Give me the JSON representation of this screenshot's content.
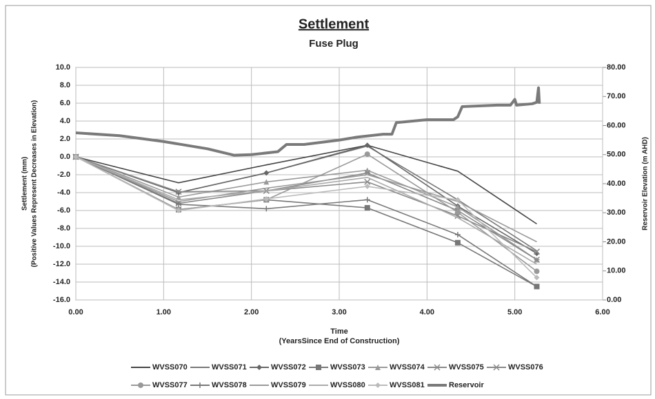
{
  "chart_data": {
    "type": "line",
    "title": "Settlement",
    "subtitle": "Fuse Plug",
    "xlabel": [
      "Time",
      "(YearsSince End of Construction)"
    ],
    "ylabel": [
      "Settlement (mm)",
      "(Positive Values Represent Decreases in Elevation)"
    ],
    "y2label": "Reservoir Elevation (m AHD)",
    "xlim": [
      0,
      6
    ],
    "xticks": [
      {
        "value": 0,
        "label": "0.00"
      },
      {
        "value": 1,
        "label": "1.00"
      },
      {
        "value": 2,
        "label": "2.00"
      },
      {
        "value": 3,
        "label": "3.00"
      },
      {
        "value": 4,
        "label": "4.00"
      },
      {
        "value": 5,
        "label": "5.00"
      },
      {
        "value": 6,
        "label": "6.00"
      }
    ],
    "ylim": [
      -16,
      10
    ],
    "yticks": [
      {
        "value": 10,
        "label": "10.0"
      },
      {
        "value": 8,
        "label": "8.0"
      },
      {
        "value": 6,
        "label": "6.0"
      },
      {
        "value": 4,
        "label": "4.0"
      },
      {
        "value": 2,
        "label": "2.0"
      },
      {
        "value": 0,
        "label": "0.0"
      },
      {
        "value": -2,
        "label": "-2.0"
      },
      {
        "value": -4,
        "label": "-4.0"
      },
      {
        "value": -6,
        "label": "-6.0"
      },
      {
        "value": -8,
        "label": "-8.0"
      },
      {
        "value": -10,
        "label": "-10.0"
      },
      {
        "value": -12,
        "label": "-12.0"
      },
      {
        "value": -14,
        "label": "-14.0"
      },
      {
        "value": -16,
        "label": "-16.0"
      }
    ],
    "y2lim": [
      0,
      80
    ],
    "y2ticks": [
      {
        "value": 80,
        "label": "80.00"
      },
      {
        "value": 70,
        "label": "70.00"
      },
      {
        "value": 60,
        "label": "60.00"
      },
      {
        "value": 50,
        "label": "50.00"
      },
      {
        "value": 40,
        "label": "40.00"
      },
      {
        "value": 30,
        "label": "30.00"
      },
      {
        "value": 20,
        "label": "20.00"
      },
      {
        "value": 10,
        "label": "10.00"
      },
      {
        "value": 0,
        "label": "0.00"
      }
    ],
    "grid": true,
    "x": [
      0,
      1.17,
      2.17,
      3.32,
      4.35,
      5.25
    ],
    "series": [
      {
        "name": "WVSS070",
        "color": "#444444",
        "marker": "none",
        "values": [
          0,
          -2.9,
          -0.9,
          1.3,
          -1.6,
          -7.5
        ]
      },
      {
        "name": "WVSS071",
        "color": "#777777",
        "marker": "none",
        "values": [
          0,
          -4.0,
          -1.8,
          1.2,
          -4.8,
          -10.5
        ]
      },
      {
        "name": "WVSS072",
        "color": "#666666",
        "marker": "diamond",
        "values": [
          0,
          -4.0,
          -1.8,
          1.3,
          -5.5,
          -10.8
        ]
      },
      {
        "name": "WVSS073",
        "color": "#777777",
        "marker": "square",
        "values": [
          0,
          -5.9,
          -4.8,
          -5.7,
          -9.6,
          -14.5
        ]
      },
      {
        "name": "WVSS074",
        "color": "#999999",
        "marker": "triangle",
        "values": [
          0,
          -4.5,
          -2.8,
          -1.5,
          -5.6,
          -11.5
        ]
      },
      {
        "name": "WVSS075",
        "color": "#888888",
        "marker": "x",
        "values": [
          0,
          -3.9,
          -3.8,
          -2.8,
          -6.6,
          -10.6
        ]
      },
      {
        "name": "WVSS076",
        "color": "#888888",
        "marker": "star",
        "values": [
          0,
          -5.2,
          -3.8,
          -1.8,
          -6.0,
          -11.5
        ]
      },
      {
        "name": "WVSS077",
        "color": "#999999",
        "marker": "circle",
        "values": [
          0,
          -5.9,
          -4.8,
          0.3,
          -6.2,
          -12.8
        ]
      },
      {
        "name": "WVSS078",
        "color": "#777777",
        "marker": "plus",
        "values": [
          0,
          -5.3,
          -5.8,
          -4.8,
          -8.7,
          -14.5
        ]
      },
      {
        "name": "WVSS079",
        "color": "#999999",
        "marker": "none",
        "values": [
          0,
          -5.0,
          -3.5,
          -2.0,
          -5.0,
          -9.5
        ]
      },
      {
        "name": "WVSS080",
        "color": "#aaaaaa",
        "marker": "none",
        "values": [
          0,
          -4.8,
          -3.8,
          -2.3,
          -6.8,
          -12.0
        ]
      },
      {
        "name": "WVSS081",
        "color": "#bbbbbb",
        "marker": "diamond",
        "values": [
          0,
          -6.0,
          -4.7,
          -3.3,
          -4.8,
          -13.5
        ]
      },
      {
        "name": "Reservoir",
        "color": "#7a7a7a",
        "marker": "none",
        "axis": "y2",
        "x": [
          0,
          0.5,
          1.0,
          1.5,
          1.8,
          2.0,
          2.3,
          2.4,
          2.6,
          3.0,
          3.2,
          3.5,
          3.6,
          3.65,
          4.0,
          4.3,
          4.35,
          4.4,
          4.8,
          4.95,
          5.0,
          5.02,
          5.2,
          5.25,
          5.27,
          5.28
        ],
        "values": [
          57.5,
          56.5,
          54.5,
          52,
          49.8,
          50,
          51,
          53.5,
          53.5,
          55,
          56,
          57,
          57,
          61,
          62,
          62,
          63,
          66.5,
          67,
          67,
          69,
          67,
          67.5,
          68,
          73,
          67.5
        ]
      }
    ]
  }
}
